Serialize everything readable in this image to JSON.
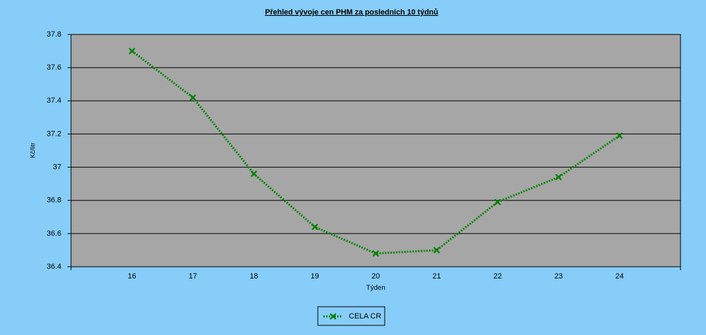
{
  "chart_data": {
    "type": "line",
    "title": "Přehled vývoje cen PHM za posledních 10 týdnů",
    "x_label": "Týden",
    "y_label": "Kč/litr",
    "x": [
      16,
      17,
      18,
      19,
      20,
      21,
      22,
      23,
      24
    ],
    "series": [
      {
        "name": "CELA CR",
        "color": "#008000",
        "values": [
          37.7,
          37.42,
          36.96,
          36.64,
          36.48,
          36.5,
          36.79,
          36.94,
          37.19
        ]
      }
    ],
    "xlim": [
      15,
      25
    ],
    "xticks": [
      16,
      17,
      18,
      19,
      20,
      21,
      22,
      23,
      24
    ],
    "ylim": [
      36.4,
      37.8
    ],
    "yticks": [
      36.4,
      36.6,
      36.8,
      37,
      37.2,
      37.4,
      37.6,
      37.8
    ],
    "grid": true,
    "legend": "bottom"
  }
}
